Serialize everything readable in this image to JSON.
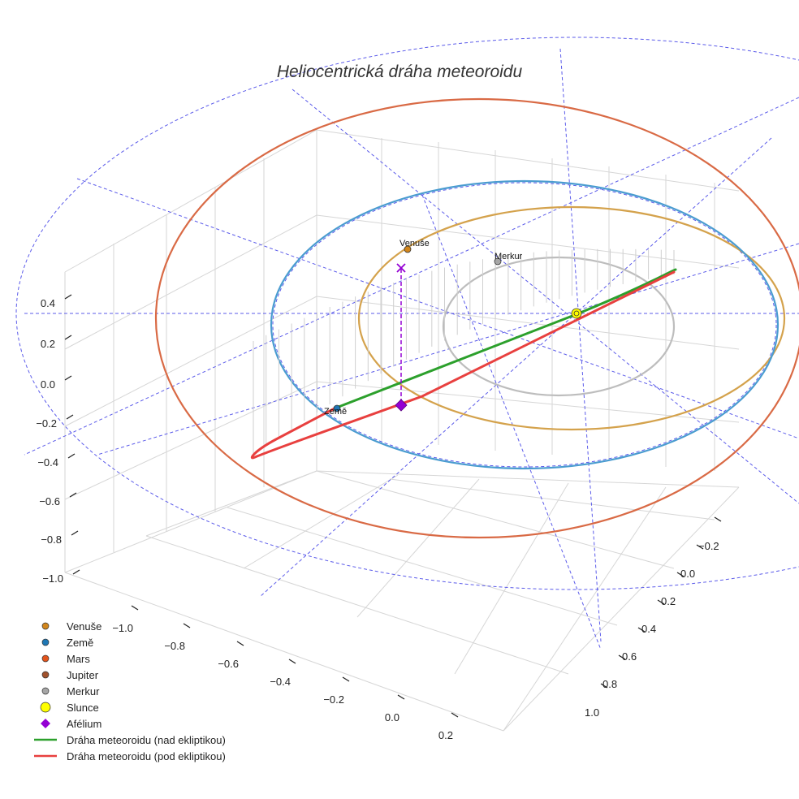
{
  "chart_data": {
    "type": "line",
    "title": "Heliocentrická dráha meteoroidu",
    "axes": {
      "z": {
        "ticks": [
          0.4,
          0.2,
          0.0,
          -0.2,
          -0.4,
          -0.6,
          -0.8,
          -1.0
        ],
        "labels": [
          "0.4",
          "0.2",
          "0.0",
          "−0.2",
          "−0.4",
          "−0.6",
          "−0.8",
          "−1.0"
        ]
      },
      "x": {
        "ticks": [
          -1.0,
          -0.8,
          -0.6,
          -0.4,
          -0.2,
          0.0,
          0.2
        ],
        "labels": [
          "−1.0",
          "−0.8",
          "−0.6",
          "−0.4",
          "−0.2",
          "0.0",
          "0.2"
        ]
      },
      "y": {
        "ticks": [
          -0.2,
          0.0,
          0.2,
          0.4,
          0.6,
          0.8,
          1.0
        ],
        "labels": [
          "−0.2",
          "0.0",
          "0.2",
          "0.4",
          "0.6",
          "0.8",
          "1.0"
        ]
      },
      "grid": true
    },
    "orbits": [
      {
        "name": "Merkur",
        "color": "#bdbdbd"
      },
      {
        "name": "Venuše",
        "color": "#d4a24c"
      },
      {
        "name": "Země",
        "color": "#4a9cd0"
      },
      {
        "name": "Mars",
        "color": "#d96a45"
      }
    ],
    "bodies": [
      {
        "name": "Venuše",
        "label": "Venuše",
        "color": "#d2861c"
      },
      {
        "name": "Merkur",
        "label": "Merkur",
        "color": "#a6a6a6"
      },
      {
        "name": "Země",
        "label": "Země",
        "color": "#1f77b4"
      },
      {
        "name": "Slunce",
        "label": "",
        "color": "#ffff00"
      }
    ],
    "series": [
      {
        "name": "Dráha meteoroidu (nad ekliptikou)",
        "color": "#2ca02c"
      },
      {
        "name": "Dráha meteoroidu (pod ekliptikou)",
        "color": "#e8403f"
      }
    ],
    "aphelion": {
      "name": "Afélium",
      "color": "#9400d3"
    },
    "legend": {
      "position": "bottom-left",
      "items": [
        {
          "label": "Venuše",
          "marker": "dot",
          "color": "#d2861c"
        },
        {
          "label": "Země",
          "marker": "dot",
          "color": "#1f77b4"
        },
        {
          "label": "Mars",
          "marker": "dot",
          "color": "#e2541c"
        },
        {
          "label": "Jupiter",
          "marker": "dot",
          "color": "#a0522d"
        },
        {
          "label": "Merkur",
          "marker": "dot",
          "color": "#a6a6a6"
        },
        {
          "label": "Slunce",
          "marker": "bigdot",
          "color": "#ffff00"
        },
        {
          "label": "Afélium",
          "marker": "diamond",
          "color": "#9400d3"
        },
        {
          "label": "Dráha meteoroidu (nad ekliptikou)",
          "marker": "line",
          "color": "#2ca02c"
        },
        {
          "label": "Dráha meteoroidu (pod ekliptikou)",
          "marker": "line",
          "color": "#e8403f"
        }
      ]
    }
  }
}
